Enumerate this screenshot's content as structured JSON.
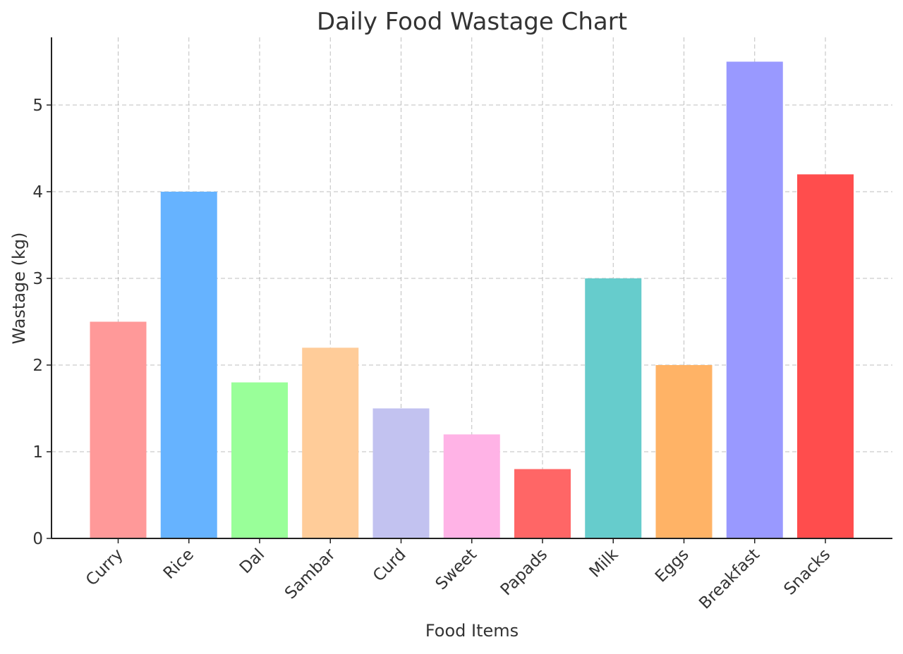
{
  "chart_data": {
    "type": "bar",
    "title": "Daily Food Wastage Chart",
    "xlabel": "Food Items",
    "ylabel": "Wastage (kg)",
    "categories": [
      "Curry",
      "Rice",
      "Dal",
      "Sambar",
      "Curd",
      "Sweet",
      "Papads",
      "Milk",
      "Eggs",
      "Breakfast",
      "Snacks"
    ],
    "values": [
      2.5,
      4.0,
      1.8,
      2.2,
      1.5,
      1.2,
      0.8,
      3.0,
      2.0,
      5.5,
      4.2
    ],
    "colors": [
      "#ff9999",
      "#66b3ff",
      "#99ff99",
      "#ffcc99",
      "#c2c2f0",
      "#ffb3e6",
      "#ff6666",
      "#66cccc",
      "#ffb366",
      "#9999ff",
      "#ff4d4d"
    ],
    "ylim": [
      0,
      5.8
    ],
    "yticks": [
      0,
      1,
      2,
      3,
      4,
      5
    ],
    "grid": true,
    "x_tick_rotation": 45
  }
}
